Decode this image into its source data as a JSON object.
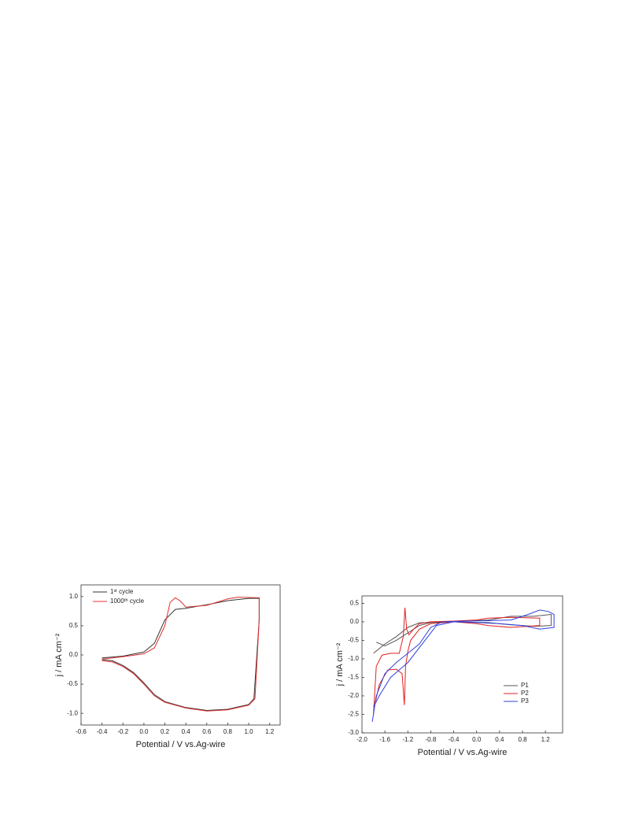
{
  "chart_data": [
    {
      "type": "line",
      "x_label": "Potential / V vs.Ag-wire",
      "y_label": "j / mA cm⁻²",
      "xlim": [
        -0.6,
        1.3
      ],
      "ylim": [
        -1.2,
        1.2
      ],
      "xticks": [
        -0.6,
        -0.4,
        -0.2,
        {
          "value": 0.0,
          "label": "0.0"
        },
        0.2,
        0.4,
        0.6,
        0.8,
        {
          "value": 1.0,
          "label": "1.0"
        },
        1.2
      ],
      "yticks": [
        {
          "value": -1.0,
          "label": "-1.0"
        },
        -0.5,
        {
          "value": 0.0,
          "label": "0.0"
        },
        0.5,
        {
          "value": 1.0,
          "label": "1.0"
        }
      ],
      "legend": "upper-left",
      "series": [
        {
          "name": "1ˢᵗ cycle",
          "color": "#333333",
          "x": [
            -0.4,
            -0.2,
            0.0,
            0.1,
            0.2,
            0.3,
            0.4,
            0.6,
            0.8,
            1.0,
            1.1,
            1.1,
            1.05,
            1.0,
            0.8,
            0.6,
            0.4,
            0.2,
            0.1,
            0.0,
            -0.1,
            -0.2,
            -0.3,
            -0.4
          ],
          "values": [
            -0.05,
            -0.02,
            0.05,
            0.2,
            0.6,
            0.78,
            0.8,
            0.86,
            0.93,
            0.97,
            0.97,
            0.6,
            -0.75,
            -0.85,
            -0.93,
            -0.95,
            -0.9,
            -0.8,
            -0.68,
            -0.48,
            -0.3,
            -0.18,
            -0.1,
            -0.08
          ]
        },
        {
          "name": "1000ᵗʰ cycle",
          "color": "#e03030",
          "x": [
            -0.4,
            -0.2,
            0.0,
            0.1,
            0.2,
            0.25,
            0.3,
            0.35,
            0.4,
            0.6,
            0.8,
            0.9,
            1.1,
            1.1,
            1.06,
            1.0,
            0.8,
            0.6,
            0.4,
            0.2,
            0.1,
            0.0,
            -0.1,
            -0.2,
            -0.3,
            -0.4
          ],
          "values": [
            -0.07,
            -0.03,
            0.02,
            0.12,
            0.5,
            0.9,
            0.98,
            0.92,
            0.82,
            0.85,
            0.96,
            0.99,
            0.98,
            0.6,
            -0.75,
            -0.86,
            -0.94,
            -0.96,
            -0.91,
            -0.81,
            -0.7,
            -0.5,
            -0.32,
            -0.2,
            -0.12,
            -0.1
          ]
        }
      ]
    },
    {
      "type": "line",
      "x_label": "Potential / V vs.Ag-wire",
      "y_label": "j / mA cm⁻²",
      "xlim": [
        -2.0,
        1.5
      ],
      "ylim": [
        -3.0,
        0.7
      ],
      "xticks": [
        {
          "value": -2.0,
          "label": "-2.0"
        },
        -1.6,
        -1.2,
        -0.8,
        -0.4,
        {
          "value": 0.0,
          "label": "0.0"
        },
        0.4,
        0.8,
        1.2
      ],
      "yticks": [
        0.5,
        {
          "value": 0.0,
          "label": "0.0"
        },
        -0.5,
        {
          "value": -1.0,
          "label": "-1.0"
        },
        -1.5,
        {
          "value": -2.0,
          "label": "-2.0"
        },
        -2.5,
        {
          "value": -3.0,
          "label": "-3.0"
        }
      ],
      "legend": "lower-right",
      "series": [
        {
          "name": "P1",
          "color": "#555555",
          "x": [
            -1.8,
            -1.6,
            -1.4,
            -1.2,
            -1.0,
            -0.6,
            -0.2,
            0.2,
            0.6,
            0.8,
            1.0,
            1.3,
            1.3,
            1.0,
            0.6,
            0.2,
            -0.4,
            -0.8,
            -1.0,
            -1.2,
            -1.4,
            -1.6,
            -1.75
          ],
          "values": [
            -0.85,
            -0.6,
            -0.4,
            -0.15,
            -0.03,
            0.0,
            0.02,
            0.05,
            0.15,
            0.15,
            0.15,
            0.2,
            -0.1,
            -0.12,
            -0.08,
            -0.02,
            0.0,
            -0.02,
            -0.1,
            -0.3,
            -0.5,
            -0.65,
            -0.55
          ]
        },
        {
          "name": "P2",
          "color": "#e02020",
          "x": [
            -1.8,
            -1.75,
            -1.65,
            -1.5,
            -1.35,
            -1.28,
            -1.25,
            -1.22,
            -1.18,
            -1.1,
            -1.0,
            -0.8,
            -0.4,
            0.0,
            0.2,
            0.6,
            1.1,
            1.1,
            0.6,
            0.2,
            0.0,
            -0.4,
            -0.8,
            -1.0,
            -1.15,
            -1.2,
            -1.24,
            -1.26,
            -1.3,
            -1.4,
            -1.55,
            -1.7,
            -1.8
          ],
          "values": [
            -2.5,
            -1.2,
            -0.9,
            -0.85,
            -0.85,
            -0.4,
            0.38,
            -0.2,
            -0.35,
            -0.2,
            -0.05,
            0.0,
            0.02,
            0.05,
            0.1,
            0.12,
            0.1,
            -0.1,
            -0.15,
            -0.1,
            -0.05,
            0.0,
            -0.05,
            -0.2,
            -0.5,
            -0.8,
            -1.2,
            -2.25,
            -1.4,
            -1.28,
            -1.3,
            -1.7,
            -2.4
          ]
        },
        {
          "name": "P3",
          "color": "#3040e0",
          "x": [
            -1.82,
            -1.75,
            -1.6,
            -1.4,
            -1.2,
            -1.0,
            -0.8,
            -0.6,
            -0.2,
            0.2,
            0.6,
            0.9,
            1.1,
            1.25,
            1.35,
            1.35,
            1.1,
            0.8,
            0.4,
            0.0,
            -0.4,
            -0.7,
            -0.9,
            -1.2,
            -1.5,
            -1.7,
            -1.8
          ],
          "values": [
            -2.7,
            -2.0,
            -1.4,
            -1.1,
            -0.85,
            -0.6,
            -0.15,
            0.0,
            0.02,
            0.03,
            0.05,
            0.2,
            0.32,
            0.28,
            0.2,
            -0.15,
            -0.2,
            -0.1,
            -0.05,
            -0.02,
            0.0,
            -0.1,
            -0.5,
            -1.1,
            -1.5,
            -2.0,
            -2.3
          ]
        }
      ]
    }
  ]
}
